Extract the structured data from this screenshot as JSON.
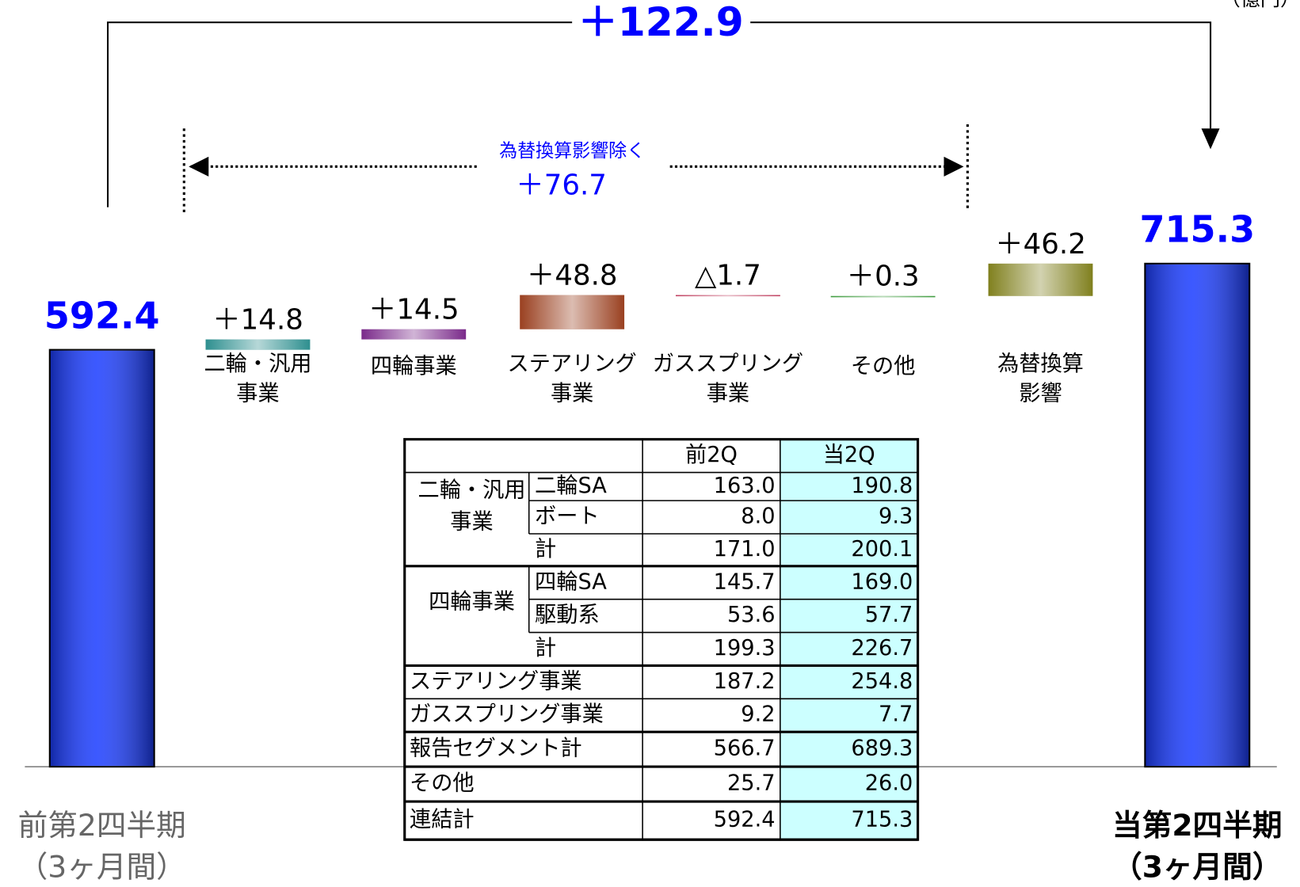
{
  "chart_data": {
    "type": "waterfall",
    "unit": "（億円）",
    "start": {
      "label": [
        "前第2四半期",
        "（3ヶ月間）"
      ],
      "value": 592.4
    },
    "categories": [
      [
        "二輪・汎用",
        "事業"
      ],
      [
        "四輪事業"
      ],
      [
        "ステアリング",
        "事業"
      ],
      [
        "ガススプリング",
        "事業"
      ],
      [
        "その他"
      ],
      [
        "為替換算",
        "影響"
      ]
    ],
    "values": [
      14.8,
      14.5,
      48.8,
      -1.7,
      0.3,
      46.2
    ],
    "value_labels": [
      "＋14.8",
      "＋14.5",
      "＋48.8",
      "△1.7",
      "＋0.3",
      "＋46.2"
    ],
    "colors": [
      "#2e8f8f",
      "#7a2a8a",
      "#9a4020",
      "#c04060",
      "#3c9a3c",
      "#80801e"
    ],
    "end": {
      "label": [
        "当第2四半期",
        "（3ヶ月間）"
      ],
      "value": 715.3
    },
    "bar_color": "#1a3cff",
    "total_change": {
      "value": 122.9,
      "label": "＋122.9"
    },
    "excluding_fx": {
      "label": "為替換算影響除く",
      "value": 76.7,
      "value_label": "＋76.7"
    }
  },
  "table": {
    "header": [
      "前2Q",
      "当2Q"
    ],
    "rows": [
      {
        "group": [
          "二輪・汎用",
          "事業"
        ],
        "items": [
          {
            "name": "二輪SA",
            "prev": "163.0",
            "cur": "190.8"
          },
          {
            "name": "ボート",
            "prev": "8.0",
            "cur": "9.3"
          },
          {
            "name": "計",
            "prev": "171.0",
            "cur": "200.1"
          }
        ]
      },
      {
        "group": [
          "四輪事業"
        ],
        "items": [
          {
            "name": "四輪SA",
            "prev": "145.7",
            "cur": "169.0"
          },
          {
            "name": "駆動系",
            "prev": "53.6",
            "cur": "57.7"
          },
          {
            "name": "計",
            "prev": "199.3",
            "cur": "226.7"
          }
        ]
      },
      {
        "name": "ステアリング事業",
        "prev": "187.2",
        "cur": "254.8"
      },
      {
        "name": "ガススプリング事業",
        "prev": "9.2",
        "cur": "7.7"
      },
      {
        "name": "報告セグメント計",
        "prev": "566.7",
        "cur": "689.3"
      },
      {
        "name": "その他",
        "prev": "25.7",
        "cur": "26.0"
      },
      {
        "name": "連結計",
        "prev": "592.4",
        "cur": "715.3"
      }
    ]
  }
}
